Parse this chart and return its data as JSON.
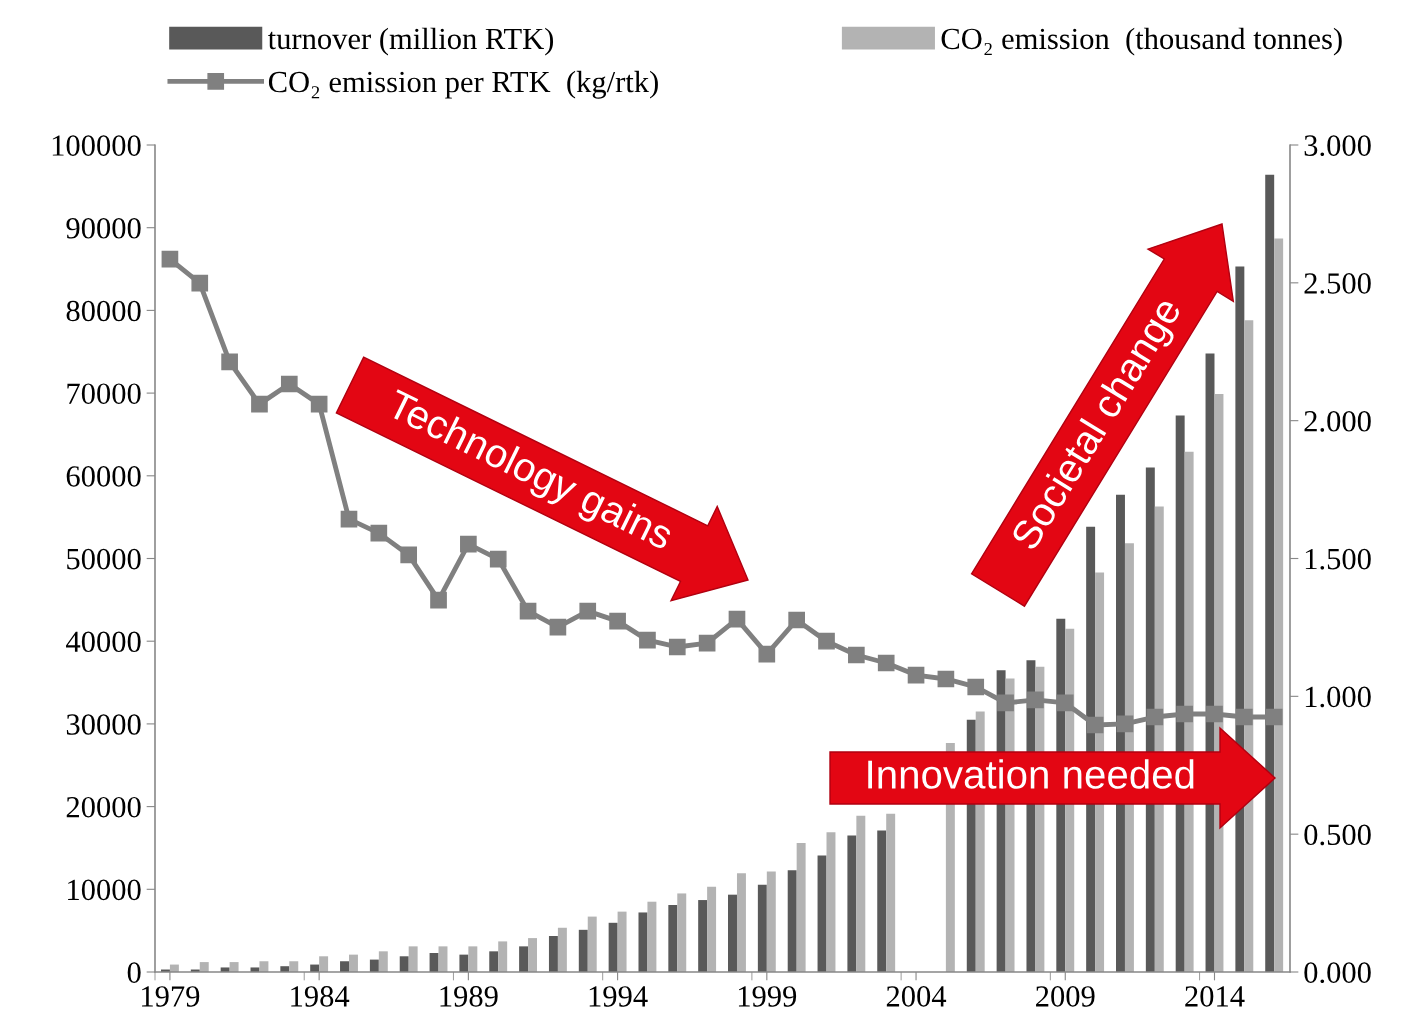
{
  "chart_data": {
    "type": "bar",
    "categories": [
      "1979",
      null,
      null,
      null,
      null,
      "1984",
      null,
      null,
      null,
      null,
      "1989",
      null,
      null,
      null,
      null,
      "1994",
      null,
      null,
      null,
      null,
      "1999",
      null,
      null,
      null,
      null,
      "2004",
      null,
      null,
      null,
      null,
      "2009",
      null,
      null,
      null,
      null,
      "2014",
      null,
      null
    ],
    "series": [
      {
        "name": "turnover (million RTK)",
        "color": "#595959",
        "values": [
          300,
          300,
          550,
          550,
          700,
          900,
          1300,
          1500,
          1900,
          2300,
          2100,
          2500,
          3100,
          4350,
          5100,
          5950,
          7200,
          8100,
          8700,
          9350,
          10550,
          12300,
          14100,
          16500,
          17100,
          null,
          null,
          30500,
          36500,
          37700,
          42700,
          53850,
          57700,
          61000,
          67300,
          74800,
          85300,
          96400
        ]
      },
      {
        "name": "CO₂ emission  (thousand tonnes)",
        "color": "#b3b3b3",
        "values": [
          900,
          1200,
          1200,
          1300,
          1300,
          1900,
          2100,
          2500,
          3100,
          3100,
          3100,
          3700,
          4100,
          5350,
          6700,
          7300,
          8500,
          9500,
          10300,
          11950,
          12150,
          15600,
          16900,
          18900,
          19150,
          null,
          27700,
          31500,
          35500,
          36900,
          41500,
          48300,
          51850,
          56300,
          62900,
          69900,
          78800,
          88700
        ]
      },
      {
        "name": "CO₂ emission per RTK  (kg/rtk)",
        "type": "line",
        "axis": "y2",
        "color": "#808080",
        "marker": "square",
        "values": [
          2.586,
          2.499,
          2.213,
          2.06,
          2.133,
          2.06,
          1.643,
          1.592,
          1.513,
          1.349,
          1.552,
          1.498,
          1.309,
          1.251,
          1.309,
          1.273,
          1.204,
          1.179,
          1.193,
          1.28,
          1.153,
          1.277,
          1.2,
          1.15,
          1.121,
          1.077,
          1.063,
          1.034,
          0.976,
          0.987,
          0.976,
          0.896,
          0.9,
          0.925,
          0.936,
          0.936,
          0.925,
          0.925
        ]
      }
    ],
    "ylim": [
      0,
      100000
    ],
    "yticks": [
      0,
      10000,
      20000,
      30000,
      40000,
      50000,
      60000,
      70000,
      80000,
      90000,
      100000
    ],
    "y2lim": [
      0,
      3
    ],
    "y2ticks": [
      {
        "value": 0,
        "label": "0.000"
      },
      {
        "value": 0.5,
        "label": "0.500"
      },
      {
        "value": 1,
        "label": "1.000"
      },
      {
        "value": 1.5,
        "label": "1.500"
      },
      {
        "value": 2,
        "label": "2.000"
      },
      {
        "value": 2.5,
        "label": "2.500"
      },
      {
        "value": 3,
        "label": "3.000"
      }
    ],
    "legend": "top",
    "grid": false,
    "annotations": [
      "Technology gains",
      "Societal change",
      "Innovation needed"
    ]
  }
}
